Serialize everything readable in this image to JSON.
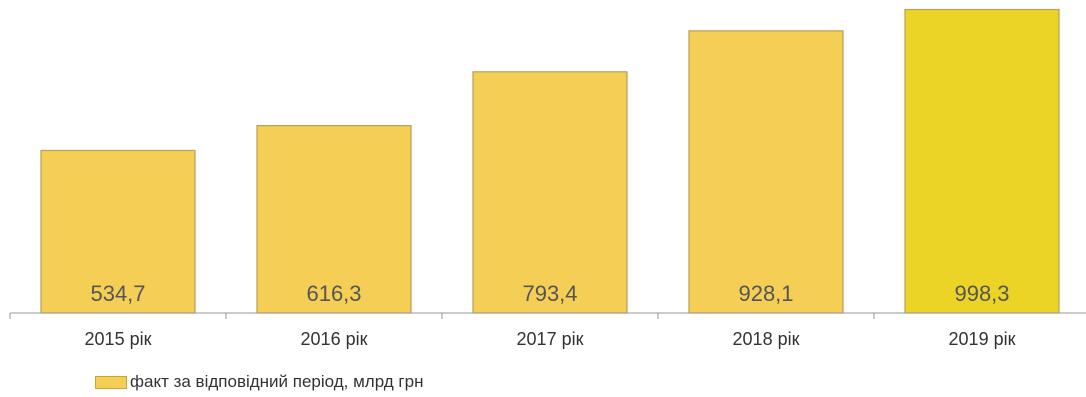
{
  "chart_data": {
    "type": "bar",
    "categories": [
      "2015 рік",
      "2016 рік",
      "2017 рік",
      "2018 рік",
      "2019 рік"
    ],
    "series": [
      {
        "name": "факт за відповідний період, млрд грн",
        "values": [
          534.7,
          616.3,
          793.4,
          928.1,
          998.3
        ]
      }
    ],
    "value_labels": [
      "534,7",
      "616,3",
      "793,4",
      "928,1",
      "998,3"
    ],
    "ylim": [
      0,
      1000
    ],
    "grid": false,
    "legend_position": "bottom-left",
    "colors": {
      "bar": "#f5cf55",
      "bar_highlight": "#ebd426",
      "bar_border": "#b8a056",
      "axis": "#999999",
      "label_text": "#555555",
      "tick_text": "#333333"
    }
  }
}
